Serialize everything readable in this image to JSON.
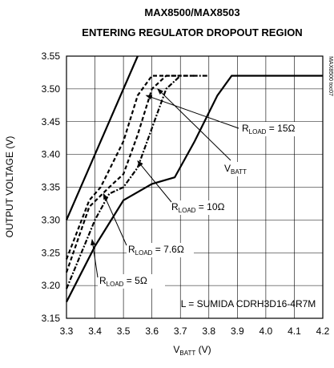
{
  "chart_data": {
    "type": "line",
    "title": "MAX8500/MAX8503",
    "subtitle": "ENTERING REGULATOR DROPOUT REGION",
    "x_label": {
      "main": "V",
      "sub": "BATT",
      "rest": " (V)"
    },
    "y_label": "OUTPUT VOLTAGE (V)",
    "side_note": "MAX8500 toc07",
    "note": "L = SUMIDA CDRH3D16-4R7M",
    "xlim": [
      3.3,
      4.2
    ],
    "ylim": [
      3.15,
      3.55
    ],
    "xticks": [
      3.3,
      3.4,
      3.5,
      3.6,
      3.7,
      3.8,
      3.9,
      {
        "value": 4,
        "label": "4.0"
      },
      4.1,
      4.2
    ],
    "yticks": [
      3.15,
      {
        "value": 3.2,
        "label": "3.20"
      },
      3.25,
      {
        "value": 3.3,
        "label": "3.30"
      },
      3.35,
      {
        "value": 3.4,
        "label": "3.40"
      },
      3.45,
      {
        "value": 3.5,
        "label": "3.50"
      },
      3.55
    ],
    "grid": true,
    "series": [
      {
        "color": "#000000",
        "dash": "solid",
        "x": [
          3.3,
          3.55
        ],
        "values": [
          3.3,
          3.55
        ]
      },
      {
        "color": "#000000",
        "dash": "solid",
        "x": [
          3.3,
          3.4,
          3.5,
          3.6,
          3.68,
          3.75,
          3.83,
          3.88,
          4.2
        ],
        "values": [
          3.175,
          3.26,
          3.33,
          3.355,
          3.365,
          3.42,
          3.49,
          3.52,
          3.52
        ]
      },
      {
        "color": "#000000",
        "dash": "dashdot",
        "x": [
          3.3,
          3.4,
          3.45,
          3.5,
          3.55,
          3.6,
          3.65,
          3.7,
          3.8
        ],
        "values": [
          3.195,
          3.3,
          3.34,
          3.35,
          3.38,
          3.44,
          3.5,
          3.52,
          3.52
        ]
      },
      {
        "color": "#000000",
        "dash": "dashed",
        "x": [
          3.3,
          3.38,
          3.45,
          3.5,
          3.55,
          3.6,
          3.65,
          3.75
        ],
        "values": [
          3.22,
          3.32,
          3.35,
          3.37,
          3.43,
          3.5,
          3.52,
          3.52
        ]
      },
      {
        "color": "#000000",
        "dash": "dashed",
        "x": [
          3.3,
          3.38,
          3.42,
          3.5,
          3.55,
          3.6,
          3.7
        ],
        "values": [
          3.24,
          3.33,
          3.35,
          3.42,
          3.49,
          3.52,
          3.52
        ]
      }
    ],
    "annotations": [
      {
        "main": "R",
        "sub": "LOAD",
        "rest": " = 15Ω"
      },
      {
        "main": "V",
        "sub": "BATT"
      },
      {
        "main": "R",
        "sub": "LOAD",
        "rest": " = 10Ω"
      },
      {
        "main": "R",
        "sub": "LOAD",
        "rest": " = 7.6Ω"
      },
      {
        "main": "R",
        "sub": "LOAD",
        "rest": " = 5Ω"
      }
    ]
  }
}
